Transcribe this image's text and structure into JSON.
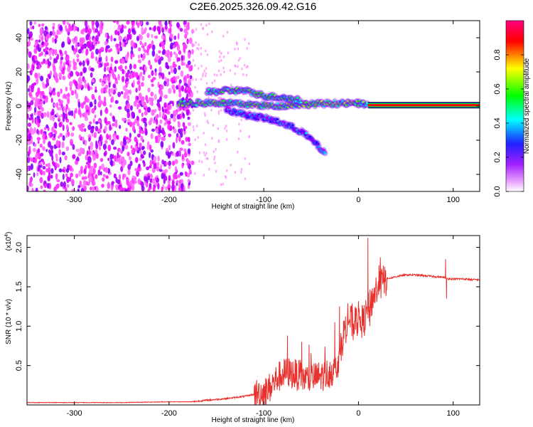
{
  "title": "C2E6.2025.326.09.42.G16",
  "chart_data": [
    {
      "type": "heatmap",
      "xlabel": "Height of straight line (km)",
      "ylabel": "Frequency (Hz)",
      "xlim": [
        -350,
        128
      ],
      "ylim": [
        -50,
        50
      ],
      "xticks": [
        -300,
        -200,
        -100,
        0,
        100
      ],
      "yticks": [
        -40,
        -20,
        0,
        20,
        40
      ],
      "colorbar": {
        "label": "Normalized spectral amplitude",
        "range": [
          0,
          1
        ],
        "ticks": [
          0.0,
          0.2,
          0.4,
          0.6,
          0.8
        ],
        "tick_labels": [
          "0.0",
          "0.2",
          "0.4",
          "0.6",
          "0.8"
        ],
        "colormap": [
          "#ffffff",
          "#ff00ff",
          "#0000ff",
          "#00ffff",
          "#00ff00",
          "#ffff00",
          "#ff0000",
          "#ff0080"
        ]
      },
      "features": [
        {
          "name": "noise-region",
          "x_range": [
            -350,
            -175
          ],
          "freq_range": [
            -50,
            50
          ],
          "amplitude": 0.1
        },
        {
          "name": "main-track",
          "points": [
            [
              -190,
              1.5
            ],
            [
              -150,
              2
            ],
            [
              -120,
              1
            ],
            [
              -90,
              0
            ],
            [
              -60,
              1
            ],
            [
              -30,
              1.5
            ],
            [
              0,
              1.5
            ],
            [
              10,
              1
            ]
          ],
          "amplitude": 0.5
        },
        {
          "name": "upper-track",
          "points": [
            [
              -160,
              8
            ],
            [
              -140,
              9
            ],
            [
              -120,
              9
            ],
            [
              -100,
              6
            ],
            [
              -80,
              5
            ],
            [
              -60,
              3
            ]
          ],
          "amplitude": 0.45
        },
        {
          "name": "lower-track",
          "points": [
            [
              -140,
              -2
            ],
            [
              -120,
              -5
            ],
            [
              -100,
              -7
            ],
            [
              -80,
              -10
            ],
            [
              -60,
              -15
            ],
            [
              -45,
              -22
            ],
            [
              -35,
              -28
            ]
          ],
          "amplitude": 0.25
        },
        {
          "name": "steady-tone",
          "x_range": [
            10,
            128
          ],
          "frequency": 0.5,
          "amplitude": 1.0
        }
      ]
    },
    {
      "type": "line",
      "xlabel": "Height of straight line (km)",
      "ylabel": "SNR (10 * v/v)",
      "y_multiplier": "(x10",
      "y_multiplier_exp": "4",
      "y_multiplier_close": ")",
      "xlim": [
        -350,
        128
      ],
      "ylim": [
        0,
        2.15
      ],
      "xticks": [
        -300,
        -200,
        -100,
        0,
        100
      ],
      "yticks": [
        0.5,
        1.0,
        1.5,
        2.0
      ],
      "ytick_labels": [
        "0.5",
        "1.0",
        "1.5",
        "2.0"
      ],
      "series": [
        {
          "name": "SNR",
          "color": "#e8302c",
          "x": [
            -350,
            -300,
            -250,
            -200,
            -175,
            -160,
            -140,
            -120,
            -100,
            -95,
            -85,
            -75,
            -65,
            -55,
            -45,
            -35,
            -25,
            -20,
            -15,
            -10,
            -5,
            0,
            5,
            10,
            20,
            30,
            40,
            50,
            60,
            70,
            80,
            90,
            95,
            100,
            110,
            120,
            128
          ],
          "values": [
            0.03,
            0.03,
            0.03,
            0.04,
            0.04,
            0.06,
            0.08,
            0.11,
            0.16,
            0.2,
            0.35,
            0.42,
            0.38,
            0.33,
            0.35,
            0.38,
            0.45,
            0.6,
            0.95,
            1.1,
            1.0,
            1.1,
            1.05,
            1.2,
            1.5,
            1.6,
            1.63,
            1.65,
            1.65,
            1.64,
            1.63,
            1.62,
            1.6,
            1.6,
            1.6,
            1.59,
            1.59
          ],
          "spikes": [
            [
              10,
              2.12
            ],
            [
              12,
              1.0
            ],
            [
              92,
              1.85
            ],
            [
              93,
              1.35
            ],
            [
              -75,
              0.88
            ],
            [
              -60,
              0.8
            ],
            [
              -25,
              1.05
            ],
            [
              -20,
              1.25
            ]
          ]
        }
      ]
    }
  ]
}
